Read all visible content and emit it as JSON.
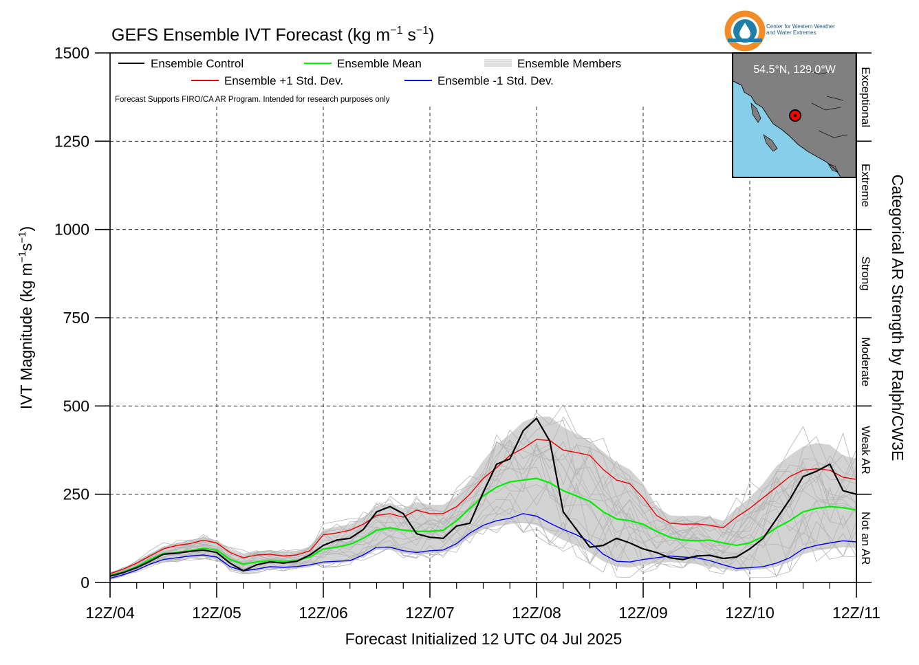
{
  "title_main": "GEFS Ensemble IVT Forecast (kg m",
  "title_sup1": "−1",
  "title_mid": " s",
  "title_sup2": "−1",
  "title_end": ")",
  "ylabel_main": "IVT Magnitude (kg m",
  "ylabel_sup1": "−1",
  "ylabel_mid": "s",
  "ylabel_sup2": "−1",
  "ylabel_end": ")",
  "xlabel": "Forecast Initialized 12 UTC 04 Jul 2025",
  "right_label": "Categorical AR Strength by Ralph/CW3E",
  "disclaimer": "Forecast Supports FIRO/CA AR Program. Intended for research purposes only",
  "logo_text_line1": "Center for Western Weather",
  "logo_text_line2": "and Water Extremes",
  "inset_label": "54.5°N, 129.0°W",
  "legend": {
    "control": "Ensemble Control",
    "mean": "Ensemble Mean",
    "members": "Ensemble Members",
    "plus_std": "Ensemble +1 Std. Dev.",
    "minus_std": "Ensemble -1 Std. Dev."
  },
  "categories": [
    {
      "label": "Not an AR",
      "lo": 0,
      "hi": 250
    },
    {
      "label": "Weak AR",
      "lo": 250,
      "hi": 500
    },
    {
      "label": "Moderate",
      "lo": 500,
      "hi": 750
    },
    {
      "label": "Strong",
      "lo": 750,
      "hi": 1000
    },
    {
      "label": "Extreme",
      "lo": 1000,
      "hi": 1250
    },
    {
      "label": "Exceptional",
      "lo": 1250,
      "hi": 1500
    }
  ],
  "colors": {
    "control": "#000000",
    "mean": "#00ee00",
    "plus_std": "#ee0000",
    "minus_std": "#0000ee",
    "members": "#b4b4b4",
    "spread_fill": "#d3d3d3",
    "ocean": "#87ceeb",
    "land": "#808080",
    "logo_orange": "#f28c28",
    "logo_blue": "#1f7ea8"
  },
  "chart_data": {
    "type": "line",
    "title": "GEFS Ensemble IVT Forecast (kg m−1 s−1)",
    "xlabel": "Forecast Initialized 12 UTC 04 Jul 2025",
    "ylabel": "IVT Magnitude (kg m−1s−1)",
    "ylim": [
      0,
      1500
    ],
    "yticks": [
      0,
      250,
      500,
      750,
      1000,
      1250,
      1500
    ],
    "xlim": [
      0,
      168
    ],
    "x_unit": "forecast hour",
    "xticks": [
      0,
      24,
      48,
      72,
      96,
      120,
      144,
      168
    ],
    "xtick_labels": [
      "12Z/04",
      "12Z/05",
      "12Z/06",
      "12Z/07",
      "12Z/08",
      "12Z/09",
      "12Z/10",
      "12Z/11"
    ],
    "grid": true,
    "legend_location": "top-left",
    "x": [
      0,
      3,
      6,
      9,
      12,
      15,
      18,
      21,
      24,
      27,
      30,
      33,
      36,
      39,
      42,
      45,
      48,
      51,
      54,
      57,
      60,
      63,
      66,
      69,
      72,
      75,
      78,
      81,
      84,
      87,
      90,
      93,
      96,
      99,
      102,
      105,
      108,
      111,
      114,
      117,
      120,
      123,
      126,
      129,
      132,
      135,
      138,
      141,
      144,
      147,
      150,
      153,
      156,
      159,
      162,
      165,
      168
    ],
    "series": [
      {
        "name": "Ensemble Control",
        "values": [
          18,
          28,
          42,
          60,
          80,
          83,
          88,
          92,
          85,
          55,
          33,
          50,
          58,
          55,
          60,
          78,
          105,
          120,
          125,
          150,
          200,
          215,
          195,
          138,
          128,
          125,
          160,
          168,
          255,
          335,
          350,
          430,
          465,
          400,
          200,
          150,
          100,
          105,
          125,
          112,
          95,
          85,
          70,
          65,
          75,
          77,
          68,
          72,
          95,
          125,
          180,
          235,
          300,
          315,
          335,
          260,
          250
        ]
      },
      {
        "name": "Ensemble Mean",
        "values": [
          20,
          30,
          45,
          65,
          82,
          85,
          90,
          97,
          92,
          65,
          52,
          58,
          62,
          60,
          62,
          72,
          95,
          100,
          108,
          125,
          148,
          155,
          148,
          145,
          145,
          148,
          175,
          210,
          245,
          270,
          285,
          290,
          295,
          282,
          260,
          245,
          230,
          200,
          180,
          175,
          165,
          145,
          128,
          120,
          118,
          120,
          112,
          105,
          112,
          130,
          155,
          175,
          200,
          210,
          215,
          212,
          205
        ]
      },
      {
        "name": "Ensemble +1 Std. Dev.",
        "values": [
          25,
          38,
          55,
          75,
          95,
          105,
          110,
          120,
          112,
          85,
          70,
          78,
          80,
          75,
          78,
          90,
          135,
          140,
          148,
          165,
          190,
          195,
          185,
          205,
          195,
          195,
          215,
          250,
          295,
          325,
          360,
          380,
          405,
          402,
          375,
          368,
          360,
          320,
          290,
          280,
          240,
          190,
          168,
          165,
          166,
          162,
          155,
          185,
          210,
          240,
          270,
          300,
          318,
          322,
          318,
          298,
          292
        ]
      },
      {
        "name": "Ensemble -1 Std. Dev.",
        "values": [
          12,
          22,
          35,
          52,
          65,
          70,
          75,
          78,
          72,
          45,
          33,
          38,
          45,
          43,
          45,
          50,
          58,
          60,
          62,
          78,
          100,
          100,
          90,
          85,
          90,
          92,
          110,
          140,
          162,
          175,
          182,
          195,
          188,
          168,
          150,
          135,
          115,
          80,
          60,
          58,
          65,
          70,
          75,
          72,
          70,
          62,
          50,
          40,
          42,
          45,
          55,
          70,
          95,
          105,
          112,
          118,
          115
        ]
      }
    ],
    "members_note": "20 individual ensemble member traces drawn as thin grey lines within a shaded spread envelope",
    "spread_envelope": {
      "lower": [
        10,
        20,
        32,
        48,
        58,
        62,
        68,
        72,
        65,
        38,
        25,
        32,
        40,
        38,
        40,
        45,
        52,
        55,
        58,
        72,
        92,
        92,
        82,
        78,
        82,
        85,
        100,
        128,
        150,
        160,
        165,
        170,
        162,
        140,
        120,
        105,
        85,
        60,
        45,
        42,
        50,
        55,
        58,
        55,
        52,
        45,
        38,
        32,
        35,
        38,
        45,
        58,
        80,
        90,
        95,
        100,
        98
      ],
      "upper": [
        28,
        42,
        60,
        82,
        102,
        112,
        118,
        128,
        120,
        95,
        80,
        88,
        92,
        86,
        90,
        102,
        150,
        158,
        165,
        185,
        215,
        225,
        210,
        228,
        220,
        220,
        245,
        290,
        345,
        390,
        420,
        455,
        470,
        470,
        440,
        420,
        400,
        370,
        340,
        320,
        280,
        215,
        190,
        188,
        190,
        185,
        175,
        210,
        240,
        280,
        330,
        360,
        385,
        395,
        390,
        360,
        350
      ]
    }
  }
}
